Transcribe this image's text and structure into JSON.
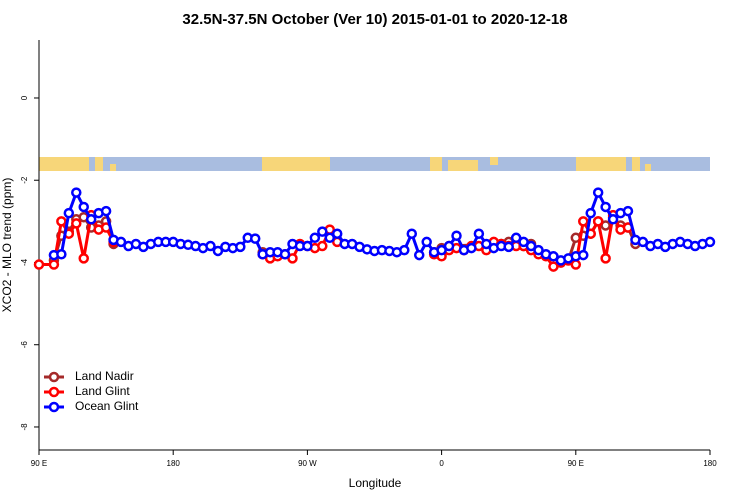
{
  "chart_data": {
    "type": "line",
    "title": "32.5N-37.5N October (Ver 10)   2015-01-01 to 2020-12-18",
    "xlabel": "Longitude",
    "ylabel": "XCO2 - MLO trend (ppm)",
    "xlim": [
      90,
      540
    ],
    "xticks": [
      {
        "value": 90,
        "label": "90 E"
      },
      180,
      {
        "value": 270,
        "label": "90 W"
      },
      {
        "value": 360,
        "label": "0"
      },
      {
        "value": 450,
        "label": "90 E"
      },
      {
        "value": 540,
        "label": "180"
      }
    ],
    "ylim": [
      -8.56,
      1.41
    ],
    "yticks": [
      0,
      -2,
      -4,
      -6,
      -8
    ],
    "legend": "bottom-left",
    "series": [
      {
        "name": "Land Nadir",
        "color": "#a52a2a",
        "x": [
          100,
          105,
          110,
          115,
          120,
          125,
          130,
          135,
          140,
          190,
          240,
          245,
          300,
          355,
          360,
          365,
          400,
          405,
          410,
          415,
          420,
          440,
          445,
          450,
          455,
          460,
          465,
          470,
          475,
          480,
          485,
          490
        ],
        "values": [
          -3.95,
          -3.35,
          -3.25,
          -2.95,
          -2.9,
          -3.15,
          -3.1,
          -3.0,
          -3.55,
          null,
          -3.75,
          -3.85,
          null,
          -3.75,
          -3.65,
          -3.6,
          -3.55,
          -3.5,
          -3.55,
          -3.6,
          -3.55,
          -4.0,
          -3.95,
          -3.4,
          -3.35,
          -3.3,
          -3.0,
          -3.1,
          -2.9,
          -3.1,
          -3.15,
          -3.55
        ]
      },
      {
        "name": "Land Glint",
        "color": "#ff0000",
        "x": [
          90,
          100,
          105,
          110,
          115,
          120,
          125,
          130,
          135,
          140,
          190,
          240,
          245,
          250,
          255,
          260,
          265,
          270,
          275,
          280,
          285,
          290,
          320,
          355,
          360,
          365,
          370,
          375,
          380,
          385,
          390,
          395,
          400,
          405,
          410,
          415,
          420,
          425,
          430,
          435,
          440,
          445,
          450,
          455,
          460,
          465,
          470,
          475,
          480,
          485
        ],
        "values": [
          -4.05,
          -4.05,
          -3.0,
          -3.3,
          -3.05,
          -3.9,
          -2.85,
          -3.2,
          -3.15,
          -3.5,
          null,
          -3.8,
          -3.9,
          -3.85,
          -3.8,
          -3.9,
          -3.55,
          -3.6,
          -3.65,
          -3.6,
          -3.2,
          -3.5,
          null,
          -3.8,
          -3.85,
          -3.7,
          -3.65,
          -3.7,
          -3.6,
          -3.6,
          -3.7,
          -3.5,
          -3.55,
          -3.6,
          -3.6,
          -3.6,
          -3.7,
          -3.8,
          -3.85,
          -4.1,
          -4.0,
          -3.95,
          -4.05,
          -3.0,
          -3.3,
          -3.0,
          -3.9,
          -2.85,
          -3.2,
          -3.15
        ]
      },
      {
        "name": "Ocean Glint",
        "color": "#0000ff",
        "x": [
          100,
          105,
          110,
          115,
          120,
          125,
          130,
          135,
          140,
          145,
          150,
          155,
          160,
          165,
          170,
          175,
          180,
          185,
          190,
          195,
          200,
          205,
          210,
          215,
          220,
          225,
          230,
          235,
          240,
          245,
          250,
          255,
          260,
          265,
          270,
          275,
          280,
          285,
          290,
          295,
          300,
          305,
          310,
          315,
          320,
          325,
          330,
          335,
          340,
          345,
          350,
          355,
          360,
          365,
          370,
          375,
          380,
          385,
          390,
          395,
          400,
          405,
          410,
          415,
          420,
          425,
          430,
          435,
          440,
          445,
          450,
          455,
          460,
          465,
          470,
          475,
          480,
          485,
          490,
          495,
          500,
          505,
          510,
          515,
          520,
          525,
          530,
          535,
          540
        ],
        "values": [
          -3.82,
          -3.8,
          -2.8,
          -2.3,
          -2.65,
          -2.95,
          -2.8,
          -2.75,
          -3.45,
          -3.5,
          -3.6,
          -3.55,
          -3.62,
          -3.55,
          -3.5,
          -3.5,
          -3.5,
          -3.55,
          -3.57,
          -3.6,
          -3.65,
          -3.6,
          -3.72,
          -3.62,
          -3.65,
          -3.62,
          -3.4,
          -3.42,
          -3.8,
          -3.75,
          -3.75,
          -3.8,
          -3.55,
          -3.6,
          -3.6,
          -3.4,
          -3.25,
          -3.4,
          -3.3,
          -3.55,
          -3.55,
          -3.62,
          -3.68,
          -3.72,
          -3.7,
          -3.72,
          -3.75,
          -3.7,
          -3.3,
          -3.82,
          -3.5,
          -3.75,
          -3.7,
          -3.6,
          -3.35,
          -3.7,
          -3.65,
          -3.3,
          -3.55,
          -3.65,
          -3.6,
          -3.62,
          -3.4,
          -3.5,
          -3.6,
          -3.7,
          -3.8,
          -3.85,
          -3.95,
          -3.9,
          -3.85,
          -3.82,
          -2.8,
          -2.3,
          -2.65,
          -2.95,
          -2.8,
          -2.75,
          -3.45,
          -3.5,
          -3.6,
          -3.55,
          -3.62,
          -3.55,
          -3.5,
          -3.55,
          -3.6,
          -3.55,
          -3.5
        ]
      }
    ]
  }
}
